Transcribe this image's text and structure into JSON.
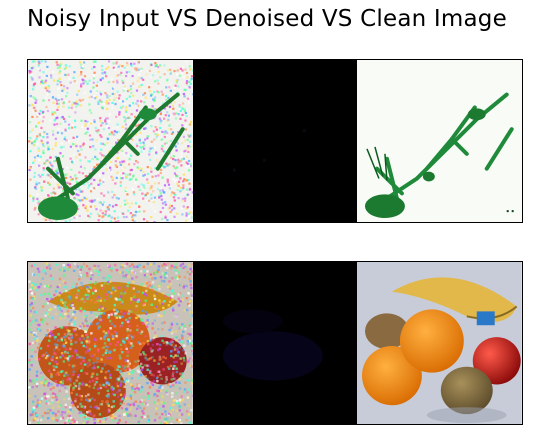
{
  "title": "Noisy Input VS Denoised VS Clean Image",
  "rows": [
    {
      "noisy": {
        "label": "noisy-mantis"
      },
      "denoised": {
        "label": "denoised-dark"
      },
      "clean": {
        "label": "clean-mantis"
      }
    },
    {
      "noisy": {
        "label": "noisy-fruits"
      },
      "denoised": {
        "label": "denoised-dark"
      },
      "clean": {
        "label": "clean-fruits"
      }
    }
  ],
  "colors": {
    "background": "#ffffff",
    "frame": "#000000",
    "mantis_green": "#1f8a3a",
    "denoised_bg": "#000000"
  }
}
